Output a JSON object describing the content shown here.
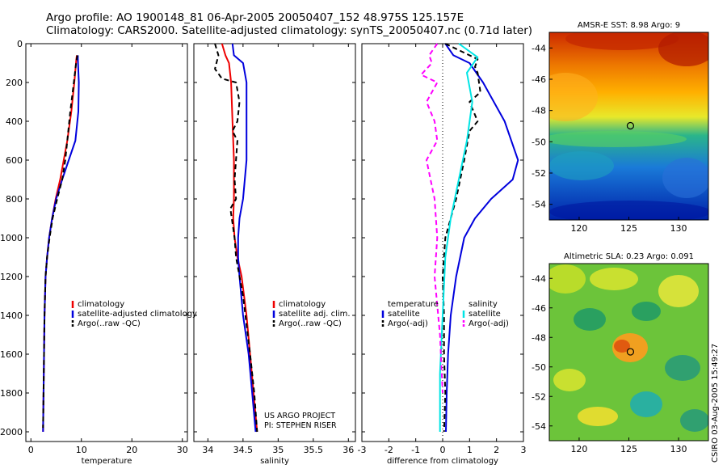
{
  "header": {
    "title_line1": "Argo profile: AO 1900148_81 06-Apr-2005 20050407_152 48.975S 125.157E",
    "title_line2": "Climatology: CARS2000. Satellite-adjusted climatology: synTS_20050407.nc (0.71d later)"
  },
  "credits": {
    "project": "US ARGO PROJECT",
    "pi": "PI: STEPHEN RISER",
    "side": "CSIRO 03-Aug-2005 15:49:27"
  },
  "colors": {
    "climatology": "#ee0000",
    "satellite": "#0000dd",
    "argo": "#000000",
    "salinity_sat": "#00e5e5",
    "argo_sal": "#ff00ff"
  },
  "chart_data": [
    {
      "type": "line",
      "xlabel": "temperature",
      "ylabel": "",
      "xlim": [
        -1,
        31
      ],
      "ylim": [
        2050,
        0
      ],
      "xticks": [
        0,
        10,
        20,
        30
      ],
      "yticks": [
        0,
        200,
        400,
        600,
        800,
        1000,
        1200,
        1400,
        1600,
        1800,
        2000
      ],
      "legend": "bottom-right",
      "series": [
        {
          "name": "climatology",
          "color": "#ee0000",
          "dash": "",
          "x": [
            9.1,
            9.0,
            8.6,
            8.0,
            7.2,
            6.5,
            5.8,
            4.9,
            4.2,
            3.6,
            3.2,
            2.9,
            2.7,
            2.6,
            2.5,
            2.4
          ],
          "y": [
            60,
            80,
            200,
            350,
            500,
            600,
            700,
            800,
            900,
            1000,
            1100,
            1200,
            1400,
            1600,
            1800,
            2000
          ]
        },
        {
          "name": "satellite-adjusted climatology",
          "color": "#0000dd",
          "dash": "",
          "x": [
            9.3,
            9.3,
            9.5,
            9.4,
            8.8,
            7.5,
            6.2,
            5.0,
            4.2,
            3.6,
            3.2,
            2.9,
            2.7,
            2.6,
            2.5,
            2.4
          ],
          "y": [
            60,
            80,
            200,
            350,
            500,
            600,
            700,
            800,
            900,
            1000,
            1100,
            1200,
            1400,
            1600,
            1800,
            2000
          ]
        },
        {
          "name": "Argo(..raw -QC)",
          "color": "#000000",
          "dash": "6,4",
          "x": [
            9.2,
            9.0,
            8.5,
            7.8,
            7.2,
            6.8,
            6.2,
            5.2,
            4.3,
            3.7,
            3.2,
            2.9,
            2.7,
            2.6,
            2.5,
            2.4
          ],
          "y": [
            60,
            90,
            200,
            350,
            500,
            600,
            700,
            800,
            900,
            1000,
            1100,
            1200,
            1400,
            1600,
            1800,
            1980
          ]
        }
      ],
      "legend_entries": [
        "climatology",
        "satellite-adjusted climatology",
        "Argo(..raw -QC)"
      ]
    },
    {
      "type": "line",
      "xlabel": "salinity",
      "ylabel": "",
      "xlim": [
        33.8,
        36.1
      ],
      "ylim": [
        2050,
        0
      ],
      "xticks": [
        34,
        34.5,
        35,
        35.5,
        36
      ],
      "legend": "bottom-right",
      "series": [
        {
          "name": "climatology",
          "color": "#ee0000",
          "dash": "",
          "x": [
            34.2,
            34.25,
            34.3,
            34.33,
            34.35,
            34.37,
            34.37,
            34.36,
            34.38,
            34.42,
            34.48,
            34.55,
            34.6,
            34.65,
            34.7
          ],
          "y": [
            0,
            60,
            100,
            200,
            400,
            600,
            800,
            900,
            1000,
            1100,
            1200,
            1400,
            1600,
            1800,
            2000
          ]
        },
        {
          "name": "satellite adj. clim.",
          "color": "#0000dd",
          "dash": "",
          "x": [
            34.35,
            34.37,
            34.5,
            34.55,
            34.55,
            34.55,
            34.5,
            34.45,
            34.43,
            34.43,
            34.45,
            34.5,
            34.58,
            34.63,
            34.68
          ],
          "y": [
            0,
            60,
            100,
            200,
            400,
            600,
            800,
            900,
            1000,
            1100,
            1200,
            1400,
            1600,
            1800,
            2000
          ]
        },
        {
          "name": "Argo(..raw -QC)",
          "color": "#000000",
          "dash": "6,4",
          "x": [
            34.1,
            34.15,
            34.1,
            34.2,
            34.4,
            34.45,
            34.42,
            34.35,
            34.42,
            34.38,
            34.4,
            34.32,
            34.38,
            34.4,
            34.5,
            34.6,
            34.66,
            34.7
          ],
          "y": [
            0,
            60,
            130,
            180,
            200,
            300,
            400,
            450,
            500,
            700,
            800,
            850,
            1000,
            1100,
            1300,
            1600,
            1800,
            2000
          ]
        }
      ],
      "legend_entries": [
        "climatology",
        "satellite adj. clim.",
        "Argo(..raw -QC)"
      ]
    },
    {
      "type": "line",
      "xlabel": "difference from climatology",
      "ylabel": "",
      "xlim": [
        -3,
        3
      ],
      "ylim": [
        2050,
        0
      ],
      "xticks": [
        -3,
        -2,
        -1,
        0,
        1,
        2,
        3
      ],
      "legend": "bottom-right",
      "series": [
        {
          "name": "temperature satellite",
          "color": "#0000dd",
          "dash": "",
          "x": [
            0.1,
            0.4,
            1.0,
            1.5,
            2.3,
            2.8,
            2.6,
            1.8,
            1.2,
            0.8,
            0.5,
            0.3,
            0.2,
            0.15,
            0.12
          ],
          "y": [
            0,
            60,
            100,
            200,
            400,
            600,
            700,
            800,
            900,
            1000,
            1200,
            1400,
            1600,
            1800,
            2000
          ]
        },
        {
          "name": "temperature Argo(-adj)",
          "color": "#000000",
          "dash": "6,4",
          "x": [
            0.1,
            1.3,
            1.2,
            1.3,
            1.4,
            1.0,
            1.3,
            1.0,
            0.8,
            0.5,
            0.1,
            0.0,
            0.05,
            0.05,
            0.1,
            0.05
          ],
          "y": [
            0,
            80,
            120,
            150,
            250,
            300,
            400,
            450,
            600,
            800,
            1000,
            1200,
            1400,
            1600,
            1800,
            2000
          ]
        },
        {
          "name": "salinity satellite",
          "color": "#00e5e5",
          "dash": "",
          "x": [
            0.6,
            1.3,
            0.9,
            1.1,
            0.9,
            0.6,
            0.3,
            0.1,
            0.0,
            -0.1,
            -0.1
          ],
          "y": [
            0,
            70,
            150,
            300,
            500,
            700,
            900,
            1100,
            1400,
            1700,
            2000
          ]
        },
        {
          "name": "salinity Argo(-adj)",
          "color": "#ff00ff",
          "dash": "6,4",
          "x": [
            -0.2,
            -0.5,
            -0.4,
            -0.8,
            -0.2,
            -0.6,
            -0.3,
            -0.2,
            -0.6,
            -0.3,
            -0.2,
            -0.3,
            -0.1,
            0.0
          ],
          "y": [
            0,
            60,
            100,
            160,
            200,
            300,
            400,
            500,
            600,
            800,
            1000,
            1200,
            1500,
            1800
          ]
        }
      ],
      "legend_left": [
        "temperature",
        "satellite",
        "Argo(-adj)"
      ],
      "legend_right": [
        "salinity",
        "satellite",
        "Argo(-adj)"
      ]
    },
    {
      "type": "heatmap",
      "title": "AMSR-E SST: 8.98 Argo: 9",
      "xticks": [
        120,
        125,
        130
      ],
      "yticks": [
        -44,
        -46,
        -48,
        -50,
        -52,
        -54
      ],
      "xlim": [
        117,
        133
      ],
      "ylim": [
        -55,
        -43
      ],
      "marker": {
        "lon": 125.157,
        "lat": -48.975
      }
    },
    {
      "type": "heatmap",
      "title": "Altimetric SLA: 0.23 Argo: 0.091",
      "xticks": [
        120,
        125,
        130
      ],
      "yticks": [
        -44,
        -46,
        -48,
        -50,
        -52,
        -54
      ],
      "xlim": [
        117,
        133
      ],
      "ylim": [
        -55,
        -43
      ],
      "marker": {
        "lon": 125.157,
        "lat": -48.975
      }
    }
  ]
}
